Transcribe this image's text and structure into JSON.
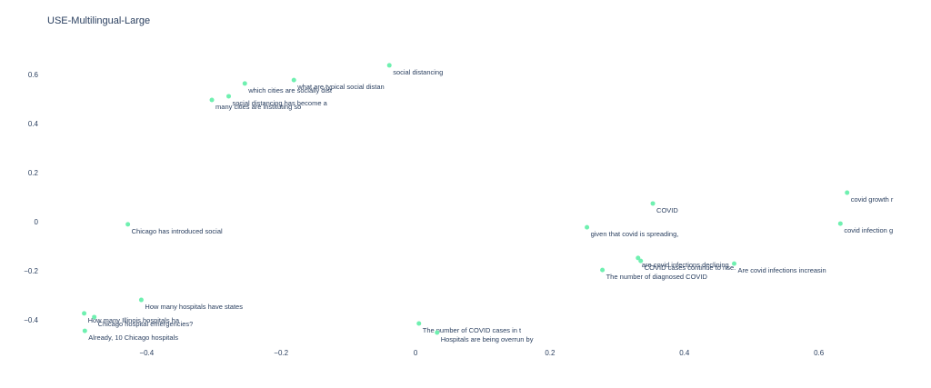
{
  "chart_data": {
    "type": "scatter",
    "title": "USE-Multilingual-Large",
    "color": "#6ff0b0",
    "grid": false,
    "xlim": [
      -0.51,
      0.71
    ],
    "ylim": [
      -0.5,
      0.7
    ],
    "xticks": [
      {
        "value": -0.4,
        "label": "−0.4"
      },
      {
        "value": -0.2,
        "label": "−0.2"
      },
      0,
      0.2,
      0.4,
      0.6
    ],
    "yticks": [
      {
        "value": -0.4,
        "label": "−0.4"
      },
      {
        "value": -0.2,
        "label": "−0.2"
      },
      0,
      0.2,
      0.4,
      0.6
    ],
    "x": [
      -0.039,
      -0.181,
      -0.254,
      -0.278,
      -0.303,
      -0.428,
      -0.408,
      -0.493,
      -0.478,
      -0.492,
      0.005,
      0.032,
      0.353,
      0.642,
      0.632,
      0.255,
      0.331,
      0.335,
      0.474,
      0.278
    ],
    "values": [
      0.641,
      0.581,
      0.567,
      0.515,
      0.5,
      -0.007,
      -0.315,
      -0.37,
      -0.385,
      -0.441,
      -0.411,
      -0.448,
      0.078,
      0.122,
      -0.004,
      -0.019,
      -0.144,
      -0.156,
      -0.167,
      -0.193
    ],
    "labels": [
      "social distancing",
      "what are typical social distan",
      "which cities are socially dist",
      "social distancing has become a",
      "many cities are instituting so",
      "Chicago has introduced social",
      "How many hospitals have states",
      "How many Illinois hospitals ha",
      "Chicago hospital emergencies?",
      "Already, 10 Chicago hospitals",
      "The number of COVID cases in t",
      "Hospitals are being overrun by",
      "COVID",
      "covid growth r",
      "covid infection g",
      "given that covid is spreading,",
      "are covid infections declining",
      "COVID cases continue to rise.",
      "Are covid infections increasin",
      "The number of diagnosed COVID"
    ]
  }
}
